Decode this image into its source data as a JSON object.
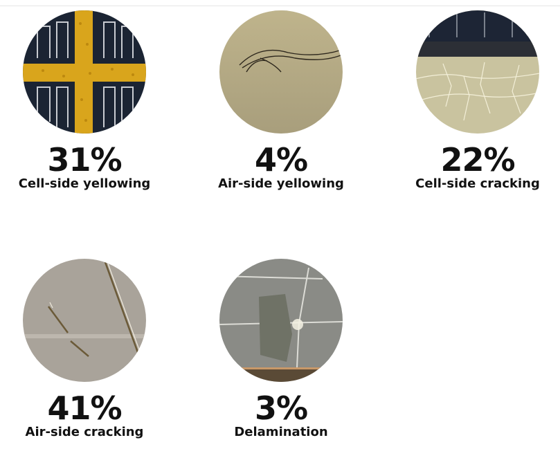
{
  "items": [
    {
      "percent": "31%",
      "label": "Cell-side yellowing"
    },
    {
      "percent": "4%",
      "label": "Air-side yellowing"
    },
    {
      "percent": "22%",
      "label": "Cell-side cracking"
    },
    {
      "percent": "41%",
      "label": "Air-side cracking"
    },
    {
      "percent": "3%",
      "label": "Delamination"
    }
  ]
}
